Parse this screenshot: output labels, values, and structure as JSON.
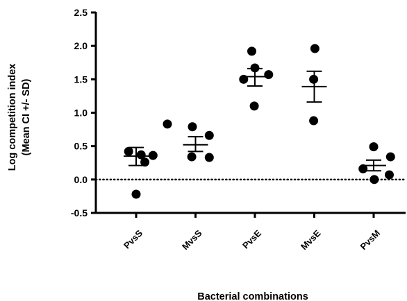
{
  "chart_data": {
    "type": "scatter",
    "title": "",
    "xlabel": "Bacterial combinations",
    "ylabel_line1": "Log competition index",
    "ylabel_line2": "(Mean CI +/- SD)",
    "ylim": [
      -0.5,
      2.5
    ],
    "yticks": [
      "2.5",
      "2.0",
      "1.5",
      "1.0",
      "0.5",
      "0.0",
      "-0.5"
    ],
    "ytick_values": [
      2.5,
      2.0,
      1.5,
      1.0,
      0.5,
      0.0,
      -0.5
    ],
    "categories": [
      "PvsS",
      "MvsS",
      "PvsE",
      "MvsE",
      "PvsM"
    ],
    "reference_line": {
      "y": 0.0,
      "style": "dotted"
    },
    "grid": false,
    "groups": [
      {
        "category": "PvsS",
        "points": [
          {
            "x": 0.5,
            "y": 0.83
          },
          {
            "x": -0.12,
            "y": 0.42
          },
          {
            "x": 0.08,
            "y": 0.37
          },
          {
            "x": 0.27,
            "y": 0.36
          },
          {
            "x": 0.14,
            "y": 0.26
          },
          {
            "x": 0.0,
            "y": -0.22
          }
        ],
        "mean": 0.35,
        "error_low": 0.21,
        "error_high": 0.48
      },
      {
        "category": "MvsS",
        "points": [
          {
            "x": -0.05,
            "y": 0.79
          },
          {
            "x": 0.22,
            "y": 0.66
          },
          {
            "x": -0.06,
            "y": 0.34
          },
          {
            "x": 0.22,
            "y": 0.33
          }
        ],
        "mean": 0.52,
        "error_low": 0.42,
        "error_high": 0.64
      },
      {
        "category": "PvsE",
        "points": [
          {
            "x": -0.05,
            "y": 1.92
          },
          {
            "x": 0.0,
            "y": 1.67
          },
          {
            "x": 0.22,
            "y": 1.57
          },
          {
            "x": -0.18,
            "y": 1.5
          },
          {
            "x": -0.01,
            "y": 1.1
          }
        ],
        "mean": 1.54,
        "error_low": 1.4,
        "error_high": 1.66
      },
      {
        "category": "MvsE",
        "points": [
          {
            "x": 0.01,
            "y": 1.96
          },
          {
            "x": -0.01,
            "y": 1.5
          },
          {
            "x": -0.01,
            "y": 0.88
          }
        ],
        "mean": 1.39,
        "error_low": 1.16,
        "error_high": 1.62
      },
      {
        "category": "PvsM",
        "points": [
          {
            "x": 0.0,
            "y": 0.49
          },
          {
            "x": 0.27,
            "y": 0.34
          },
          {
            "x": -0.17,
            "y": 0.16
          },
          {
            "x": 0.25,
            "y": 0.07
          },
          {
            "x": 0.01,
            "y": 0.0
          }
        ],
        "mean": 0.21,
        "error_low": 0.13,
        "error_high": 0.29
      }
    ]
  }
}
